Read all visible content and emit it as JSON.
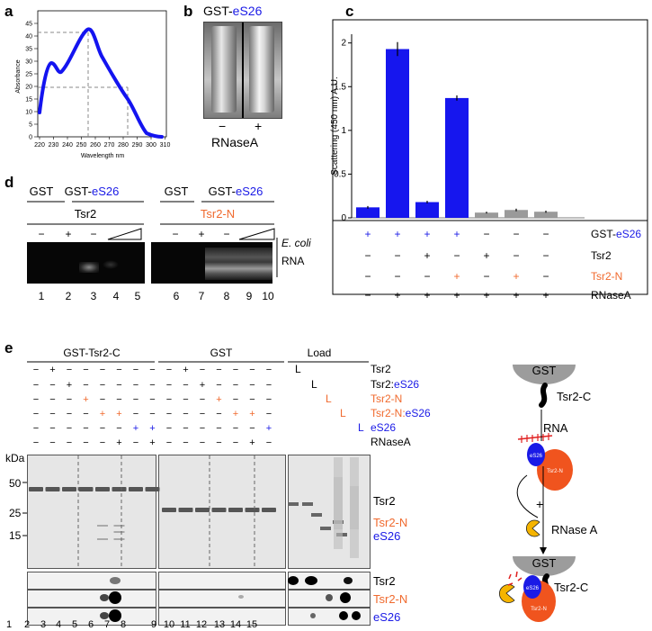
{
  "panel_letters": {
    "a": "a",
    "b": "b",
    "c": "c",
    "d": "d",
    "e": "e"
  },
  "panel_a": {
    "ylabel": "Absorbance",
    "xlabel": "Wavelength nm",
    "yticks": [
      "0",
      "5",
      "10",
      "15",
      "20",
      "25",
      "30",
      "35",
      "40",
      "45"
    ],
    "xticks": [
      "220",
      "230",
      "240",
      "250",
      "260",
      "270",
      "280",
      "290",
      "300",
      "310"
    ]
  },
  "panel_b": {
    "title_prefix": "GST-",
    "title_protein": "eS26",
    "signs": [
      "−",
      "+"
    ],
    "caption": "RNaseA"
  },
  "chart_data": {
    "type": "bar",
    "ylabel": "Scattering (450 nm) A.U.",
    "ylim": [
      0,
      2.1
    ],
    "yticks": [
      "0",
      "0.5",
      "1",
      "1.5",
      "2"
    ],
    "values": [
      0.12,
      1.93,
      0.18,
      1.37,
      0.06,
      0.09,
      0.07
    ],
    "errors": [
      0.015,
      0.08,
      0.015,
      0.03,
      0.01,
      0.015,
      0.012
    ],
    "bar_colors": [
      "#1616ee",
      "#1616ee",
      "#1616ee",
      "#1616ee",
      "#9a9a9a",
      "#9a9a9a",
      "#9a9a9a"
    ],
    "conditions": [
      {
        "label_prefix": "GST-",
        "label_protein": "eS26",
        "color": "#1a1ae6",
        "signs": [
          "+",
          "+",
          "+",
          "+",
          "−",
          "−",
          "−"
        ]
      },
      {
        "label": "Tsr2",
        "color": "#000000",
        "signs": [
          "−",
          "−",
          "+",
          "−",
          "+",
          "−",
          "−"
        ]
      },
      {
        "label": "Tsr2-N",
        "color": "#f06a2e",
        "signs": [
          "−",
          "−",
          "−",
          "+",
          "−",
          "+",
          "−"
        ]
      },
      {
        "label": "RNaseA",
        "color": "#000000",
        "signs": [
          "−",
          "+",
          "+",
          "+",
          "+",
          "+",
          "+"
        ]
      }
    ]
  },
  "panel_d": {
    "groups": [
      "GST",
      "GST-eS26",
      "GST",
      "GST-eS26"
    ],
    "subgroups": [
      "Tsr2",
      "Tsr2-N"
    ],
    "signs": [
      "−",
      "+",
      "−",
      "−",
      "+",
      "−"
    ],
    "rna_label_1": "E. coli",
    "rna_label_2": "RNA",
    "lanes": [
      "1",
      "2",
      "3",
      "4",
      "5",
      "6",
      "7",
      "8",
      "9",
      "10"
    ]
  },
  "panel_e": {
    "group_titles": [
      "GST-Tsr2-C",
      "GST",
      "Load"
    ],
    "rows": [
      {
        "label": "Tsr2",
        "color": "#000000"
      },
      {
        "label_a": "Tsr2:",
        "label_b": "eS26",
        "color": "#000000"
      },
      {
        "label": "Tsr2-N",
        "color": "#f06a2e"
      },
      {
        "label_a": "Tsr2-N:",
        "label_b": "eS26",
        "color": "#f06a2e"
      },
      {
        "label": "eS26",
        "color": "#1a1ae6"
      },
      {
        "label": "RNaseA",
        "color": "#000000"
      }
    ],
    "load_marker": "L",
    "kda_label": "kDa",
    "mw": [
      "50",
      "25",
      "15"
    ],
    "gel_labels": [
      "Tsr2",
      "Tsr2-N",
      "eS26"
    ],
    "blot_labels": [
      "Tsr2",
      "Tsr2-N",
      "eS26"
    ],
    "lanes": [
      "1",
      "2",
      "3",
      "4",
      "5",
      "6",
      "7",
      "8",
      "9",
      "10",
      "11",
      "12",
      "13",
      "14",
      "15"
    ]
  },
  "schematic": {
    "top_gst": "GST",
    "tsr2c": "Tsr2-C",
    "rna": "RNA",
    "plus": "+",
    "rnase": "RNase A",
    "bottom_gst": "GST",
    "tsr2c_bottom": "Tsr2-C",
    "es26": "eS26",
    "tsr2n": "Tsr2-N"
  }
}
